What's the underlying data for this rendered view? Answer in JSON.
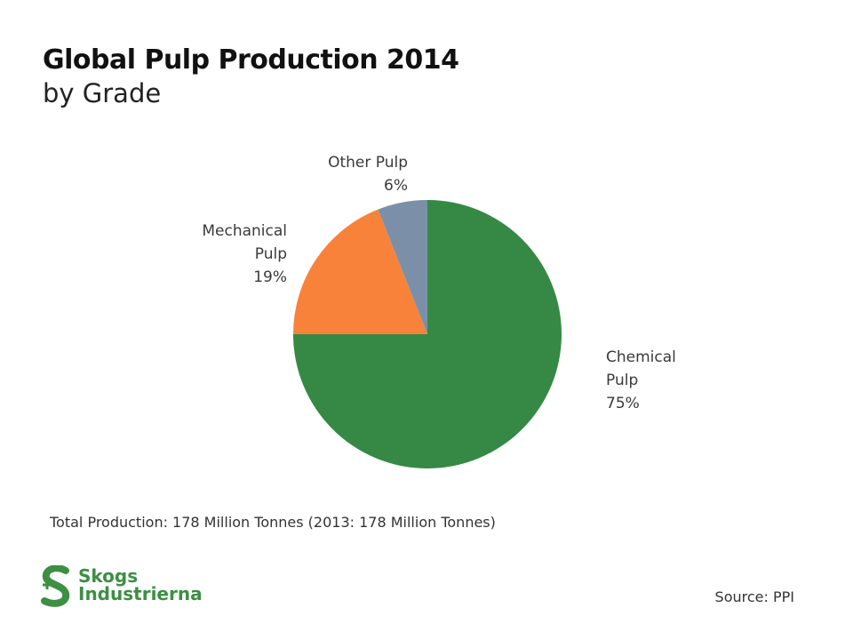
{
  "header": {
    "title": "Global Pulp Production 2014",
    "subtitle": "by Grade"
  },
  "chart_data": {
    "type": "pie",
    "title": "Global Pulp Production 2014",
    "subtitle": "by Grade",
    "categories": [
      "Chemical Pulp",
      "Mechanical Pulp",
      "Other Pulp"
    ],
    "values": [
      75,
      19,
      6
    ],
    "unit": "%",
    "colors": [
      "#358944",
      "#f8823a",
      "#7b90a8"
    ],
    "labels": [
      {
        "lines": [
          "Chemical",
          "Pulp",
          "75%"
        ]
      },
      {
        "lines": [
          "Mechanical",
          "Pulp",
          "19%"
        ]
      },
      {
        "lines": [
          "Other Pulp",
          "6%"
        ]
      }
    ],
    "legend": "none"
  },
  "footer": {
    "total_note": "Total Production: 178 Million Tonnes (2013: 178 Million Tonnes)",
    "source": "Source: PPI"
  },
  "logo": {
    "line1": "Skogs",
    "line2": "Industrierna",
    "color": "#3c8f43"
  }
}
